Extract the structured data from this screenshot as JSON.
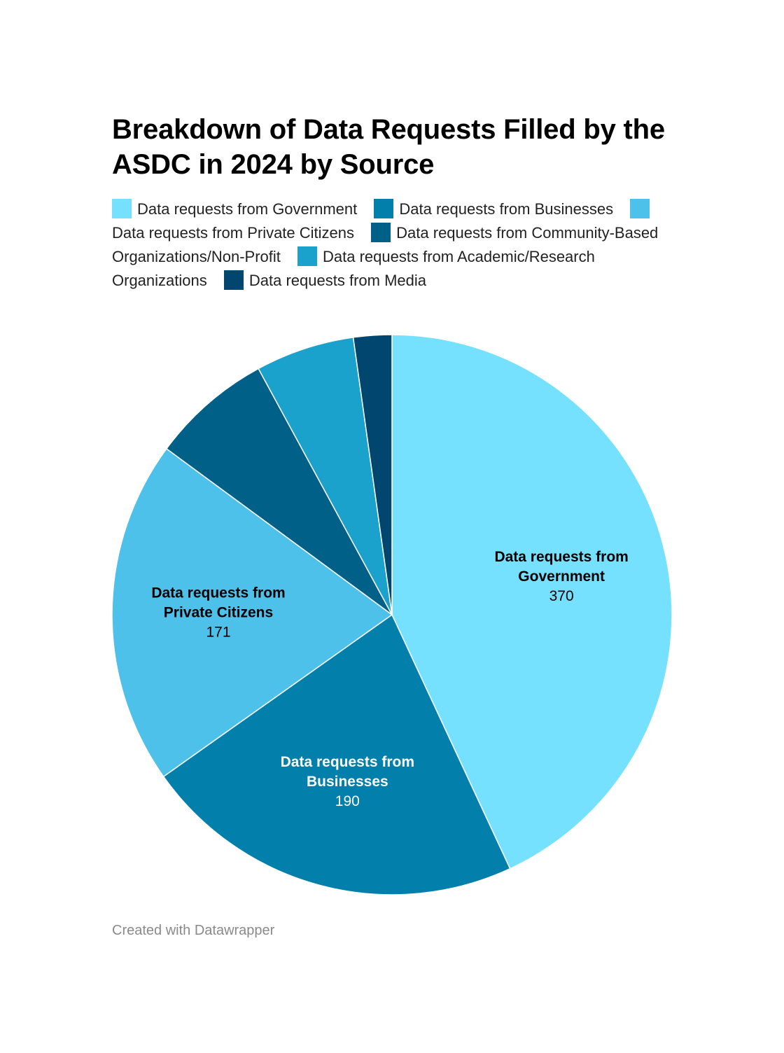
{
  "title": "Breakdown of Data Requests Filled by the ASDC in 2024 by Source",
  "credit": "Created with Datawrapper",
  "chart_data": {
    "type": "pie",
    "title": "Breakdown of Data Requests Filled by the ASDC in 2024 by Source",
    "legend_position": "top",
    "start": "12 o'clock, clockwise",
    "slices": [
      {
        "label": "Data requests from Government",
        "label_lines": [
          "Data requests from",
          "Government"
        ],
        "value": 370,
        "color": "#76e1fe",
        "label_color": "#000000",
        "show_label": true
      },
      {
        "label": "Data requests from Businesses",
        "label_lines": [
          "Data requests from",
          "Businesses"
        ],
        "value": 190,
        "color": "#0280ab",
        "label_color": "#ffffff",
        "show_label": true
      },
      {
        "label": "Data requests from Private Citizens",
        "label_lines": [
          "Data requests from",
          "Private Citizens"
        ],
        "value": 171,
        "color": "#4ec1eb",
        "label_color": "#000000",
        "show_label": true
      },
      {
        "label": "Data requests from Community-Based Organizations/Non-Profit",
        "value": 60,
        "color": "#006087",
        "show_label": false
      },
      {
        "label": "Data requests from Academic/Research Organizations",
        "value": 49,
        "color": "#1aa1cc",
        "show_label": false
      },
      {
        "label": "Data requests from Media",
        "value": 19,
        "color": "#00466e",
        "show_label": false
      }
    ]
  }
}
